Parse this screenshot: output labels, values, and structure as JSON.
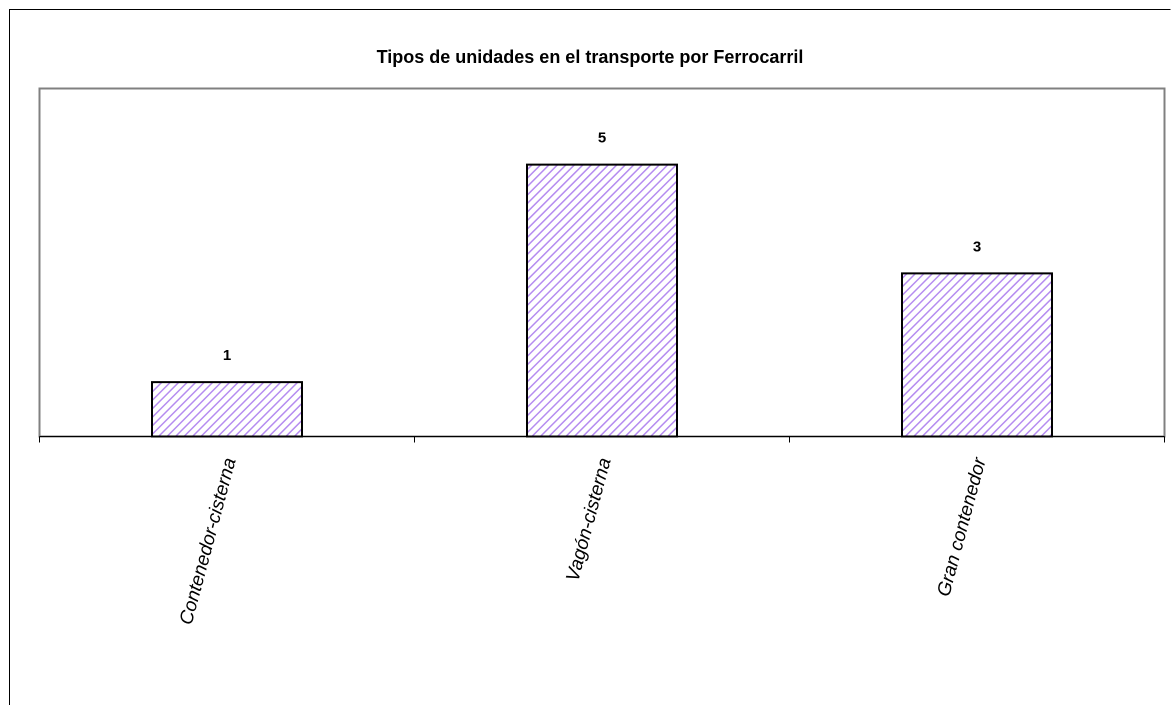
{
  "chart_data": {
    "type": "bar",
    "title": "Tipos de unidades en el transporte por Ferrocarril",
    "categories": [
      "Contenedor-cisterna",
      "Vagón-cisterna",
      "Gran contenedor"
    ],
    "values": [
      1,
      5,
      3
    ],
    "color": "#b58cf0",
    "ylim": [
      0,
      6.4
    ]
  }
}
